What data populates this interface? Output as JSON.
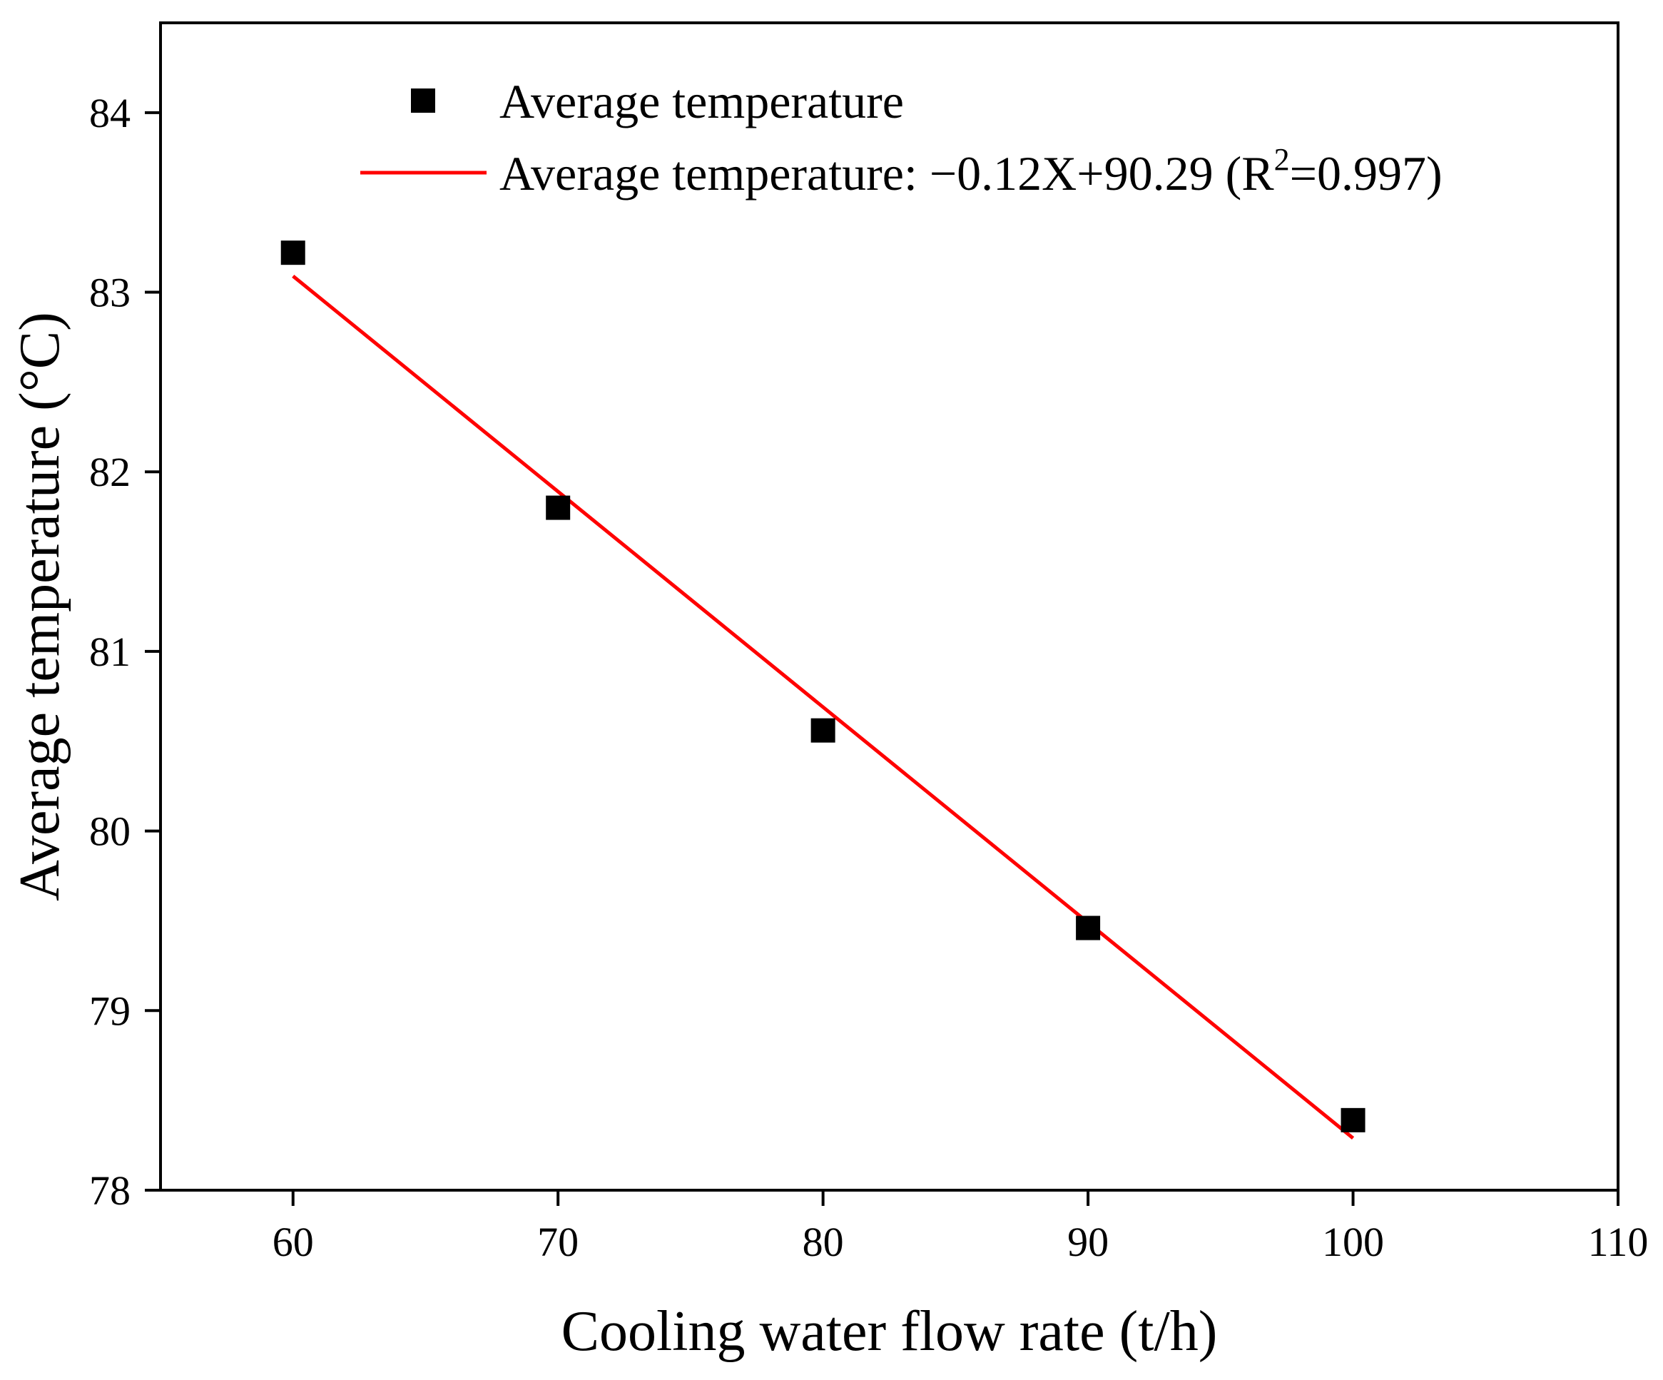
{
  "chart_data": {
    "type": "scatter",
    "title": "",
    "xlabel": "Cooling water flow rate (t/h)",
    "ylabel": "Average temperature (°C)",
    "xlim": [
      55,
      110
    ],
    "ylim": [
      78,
      84.5
    ],
    "xticks": [
      60,
      70,
      80,
      90,
      100,
      110
    ],
    "yticks": [
      78,
      79,
      80,
      81,
      82,
      83,
      84
    ],
    "grid": false,
    "legend_position": "top-left",
    "series": [
      {
        "name": "Average temperature",
        "kind": "scatter",
        "marker": "square",
        "color": "#000000",
        "x": [
          60,
          70,
          80,
          90,
          100
        ],
        "y": [
          83.22,
          81.8,
          80.56,
          79.46,
          78.39
        ]
      },
      {
        "name": "Average temperature: −0.12X+90.29 (R²=0.997)",
        "kind": "line",
        "color": "#ff0000",
        "slope": -0.12,
        "intercept": 90.29,
        "x_range": [
          60,
          100
        ]
      }
    ],
    "legend": {
      "scatter_label": "Average temperature",
      "fit_label_prefix": "Average temperature: −0.12X+90.29 (R",
      "fit_label_sup": "2",
      "fit_label_suffix": "=0.997)"
    }
  }
}
